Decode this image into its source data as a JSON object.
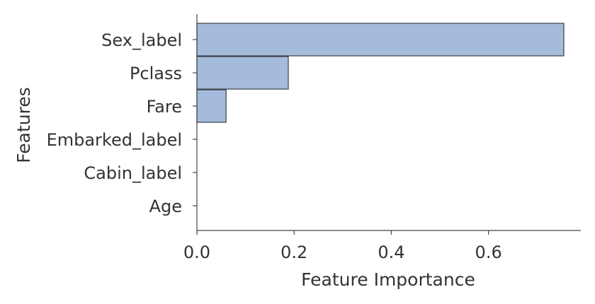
{
  "chart_data": {
    "type": "bar",
    "orientation": "horizontal",
    "categories": [
      "Sex_label",
      "Pclass",
      "Fare",
      "Embarked_label",
      "Cabin_label",
      "Age"
    ],
    "values": [
      0.755,
      0.188,
      0.06,
      0.0,
      0.0,
      0.0
    ],
    "xlabel": "Feature Importance",
    "ylabel": "Features",
    "xlim": [
      0.0,
      0.79
    ],
    "xticks": [
      0.0,
      0.2,
      0.4,
      0.6
    ],
    "xtick_labels": [
      "0.0",
      "0.2",
      "0.4",
      "0.6"
    ],
    "grid": false,
    "colors": {
      "bar_fill": "#a5bbdb",
      "bar_edge": "#3a3f47",
      "text": "#333333"
    }
  }
}
